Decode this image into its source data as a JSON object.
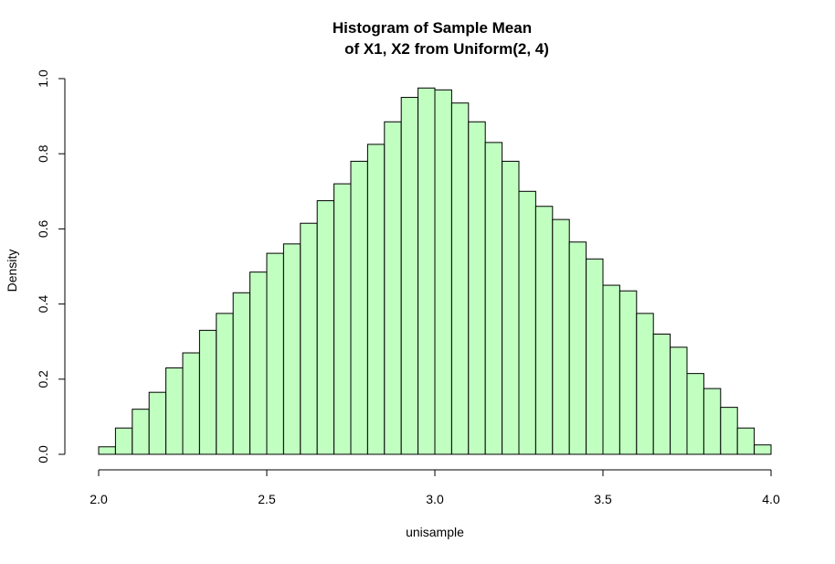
{
  "chart_data": {
    "type": "histogram",
    "title_line1": "Histogram of Sample Mean",
    "title_line2": "of X1, X2 from Uniform(2, 4)",
    "xlabel": "unisample",
    "ylabel": "Density",
    "xlim": [
      2.0,
      4.0
    ],
    "ylim": [
      0.0,
      1.0
    ],
    "x_ticks": [
      2.0,
      2.5,
      3.0,
      3.5,
      4.0
    ],
    "x_tick_labels": [
      "2.0",
      "2.5",
      "3.0",
      "3.5",
      "4.0"
    ],
    "y_ticks": [
      0.0,
      0.2,
      0.4,
      0.6,
      0.8,
      1.0
    ],
    "y_tick_labels": [
      "0.0",
      "0.2",
      "0.4",
      "0.6",
      "0.8",
      "1.0"
    ],
    "bin_width": 0.05,
    "bin_start": 2.0,
    "values": [
      0.02,
      0.07,
      0.12,
      0.165,
      0.23,
      0.27,
      0.33,
      0.375,
      0.43,
      0.485,
      0.535,
      0.56,
      0.615,
      0.675,
      0.72,
      0.78,
      0.825,
      0.885,
      0.95,
      0.975,
      0.97,
      0.935,
      0.885,
      0.83,
      0.78,
      0.7,
      0.66,
      0.625,
      0.565,
      0.52,
      0.45,
      0.435,
      0.375,
      0.32,
      0.285,
      0.215,
      0.175,
      0.125,
      0.07,
      0.025
    ],
    "bar_fill": "#c1ffc1",
    "bar_stroke": "#000000",
    "grid": false
  }
}
